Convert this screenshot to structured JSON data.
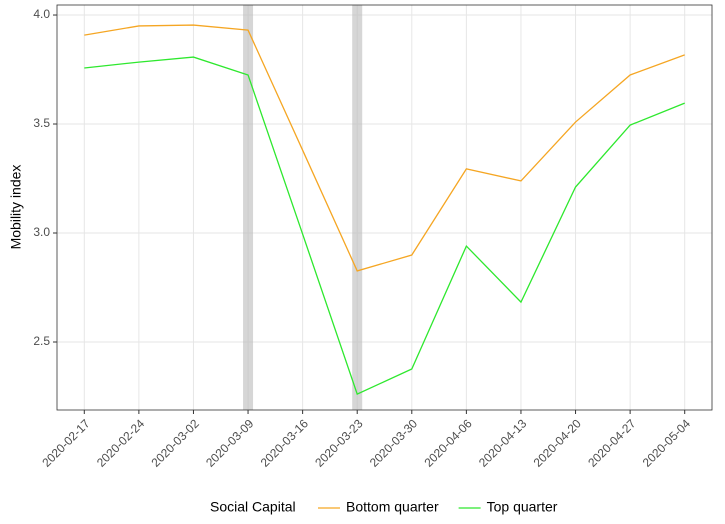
{
  "chart_data": {
    "type": "line",
    "ylabel": "Mobility index",
    "categories": [
      "2020-02-17",
      "2020-02-24",
      "2020-03-02",
      "2020-03-09",
      "2020-03-16",
      "2020-03-23",
      "2020-03-30",
      "2020-04-06",
      "2020-04-13",
      "2020-04-20",
      "2020-04-27",
      "2020-05-04"
    ],
    "series": [
      {
        "name": "Bottom quarter",
        "color": "#f5a623",
        "values": [
          3.908,
          3.95,
          3.954,
          3.931,
          3.38,
          2.826,
          2.899,
          3.294,
          3.239,
          3.509,
          3.725,
          3.817
        ]
      },
      {
        "name": "Top quarter",
        "color": "#2ee82e",
        "values": [
          3.757,
          3.784,
          3.807,
          3.725,
          2.995,
          2.261,
          2.376,
          2.94,
          2.683,
          3.211,
          3.495,
          3.596
        ]
      }
    ],
    "highlight_dates": [
      "2020-03-09",
      "2020-03-23"
    ],
    "ylim": [
      2.188,
      4.046
    ],
    "yticks": [
      {
        "value": 2.5,
        "label": "2.5"
      },
      {
        "value": 3,
        "label": "3.0"
      },
      {
        "value": 3.5,
        "label": "3.5"
      },
      {
        "value": 4,
        "label": "4.0"
      }
    ],
    "grid": true,
    "legend": {
      "title": "Social Capital",
      "position": "bottom"
    }
  }
}
